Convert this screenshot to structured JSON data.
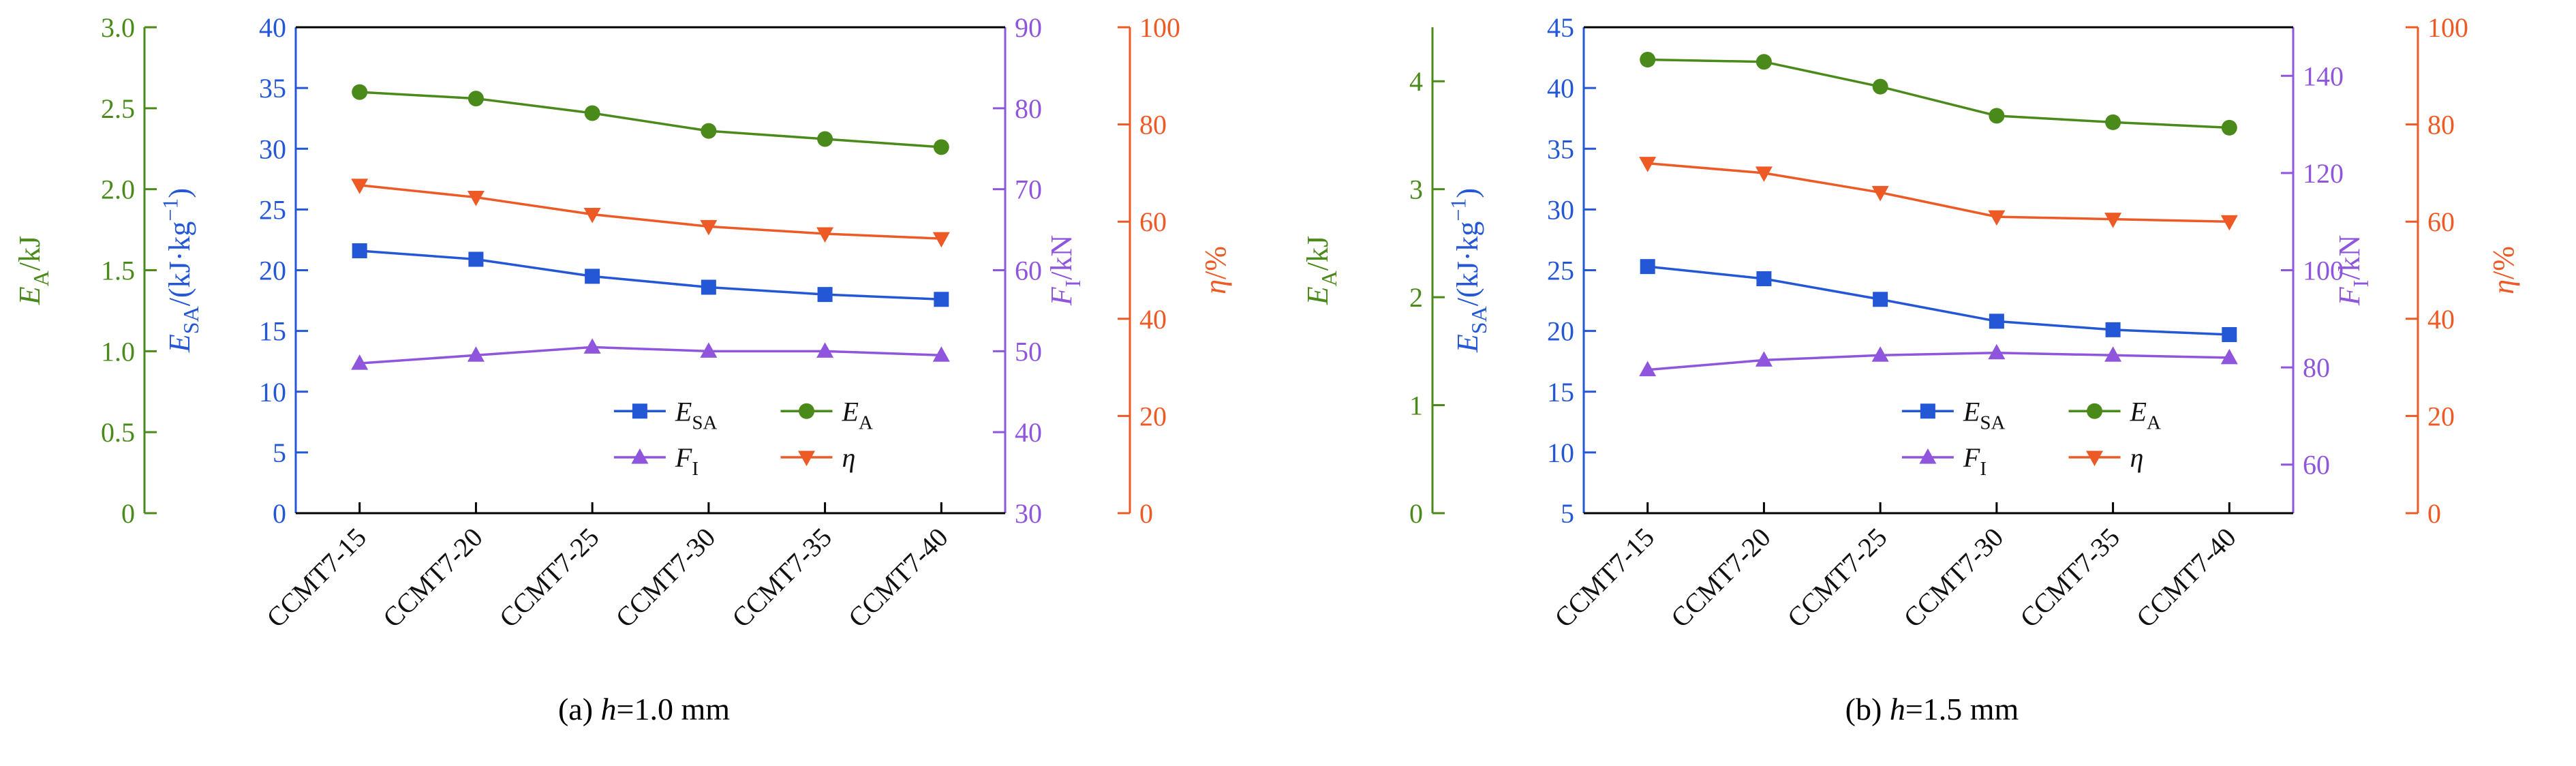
{
  "chart_data": [
    {
      "type": "line",
      "caption": {
        "prefix": "(a) ",
        "variable": "h",
        "suffix": "=1.0 mm"
      },
      "categories": [
        "CCMT7-15",
        "CCMT7-20",
        "CCMT7-25",
        "CCMT7-30",
        "CCMT7-35",
        "CCMT7-40"
      ],
      "axes": [
        {
          "key": "ea",
          "name": "EA/kJ",
          "side": "left-outer",
          "color": "#4a8a1a",
          "range": [
            0,
            3
          ],
          "tick_values": [
            0,
            0.5,
            1,
            1.5,
            2,
            2.5,
            3
          ],
          "tick_labels": [
            "0",
            "0.5",
            "1.0",
            "1.5",
            "2.0",
            "2.5",
            "3.0"
          ],
          "label_parts": [
            {
              "t": "E",
              "i": 1
            },
            {
              "t": "A",
              "sub": 1
            },
            {
              "t": "/kJ"
            }
          ]
        },
        {
          "key": "esa",
          "name": "ESA/(kJ·kg−1)",
          "side": "left-inner",
          "color": "#2457d6",
          "range": [
            0,
            40
          ],
          "tick_values": [
            0,
            5,
            10,
            15,
            20,
            25,
            30,
            35,
            40
          ],
          "tick_labels": [
            "0",
            "5",
            "10",
            "15",
            "20",
            "25",
            "30",
            "35",
            "40"
          ],
          "label_parts": [
            {
              "t": "E",
              "i": 1
            },
            {
              "t": "SA",
              "sub": 1
            },
            {
              "t": "/(kJ·kg"
            },
            {
              "t": "−1",
              "sup": 1
            },
            {
              "t": ")"
            }
          ]
        },
        {
          "key": "fi",
          "name": "FI/kN",
          "side": "right-inner",
          "color": "#8f55dd",
          "range": [
            30,
            90
          ],
          "tick_values": [
            30,
            40,
            50,
            60,
            70,
            80,
            90
          ],
          "tick_labels": [
            "30",
            "40",
            "50",
            "60",
            "70",
            "80",
            "90"
          ],
          "label_parts": [
            {
              "t": "F",
              "i": 1
            },
            {
              "t": "I",
              "sub": 1
            },
            {
              "t": "/kN"
            }
          ]
        },
        {
          "key": "eta",
          "name": "η/%",
          "side": "right-outer",
          "color": "#ee5a26",
          "range": [
            0,
            100
          ],
          "tick_values": [
            0,
            20,
            40,
            60,
            80,
            100
          ],
          "tick_labels": [
            "0",
            "20",
            "40",
            "60",
            "80",
            "100"
          ],
          "label_parts": [
            {
              "t": "η",
              "i": 1
            },
            {
              "t": "/%"
            }
          ]
        }
      ],
      "series": [
        {
          "key": "esa",
          "name": "ESA",
          "axis": "esa",
          "color": "#2457d6",
          "marker": "square",
          "values": [
            21.6,
            20.9,
            19.5,
            18.6,
            18.0,
            17.6
          ],
          "legend_parts": [
            {
              "t": "E",
              "i": 1
            },
            {
              "t": "SA",
              "sub": 1
            }
          ]
        },
        {
          "key": "ea",
          "name": "EA",
          "axis": "ea",
          "color": "#4a8a1a",
          "marker": "circle",
          "values": [
            2.6,
            2.56,
            2.47,
            2.36,
            2.31,
            2.26
          ],
          "legend_parts": [
            {
              "t": "E",
              "i": 1
            },
            {
              "t": "A",
              "sub": 1
            }
          ]
        },
        {
          "key": "fi",
          "name": "FI",
          "axis": "fi",
          "color": "#8f55dd",
          "marker": "triangle-up",
          "values": [
            48.5,
            49.5,
            50.5,
            50.0,
            50.0,
            49.5
          ],
          "legend_parts": [
            {
              "t": "F",
              "i": 1
            },
            {
              "t": "I",
              "sub": 1
            }
          ]
        },
        {
          "key": "eta",
          "name": "η",
          "axis": "eta",
          "color": "#ee5a26",
          "marker": "triangle-down",
          "values": [
            67.5,
            65.0,
            61.5,
            59.0,
            57.5,
            56.5
          ],
          "legend_parts": [
            {
              "t": "η",
              "i": 1
            }
          ]
        }
      ],
      "legend": {
        "rows": [
          [
            "esa",
            "ea"
          ],
          [
            "fi",
            "eta"
          ]
        ]
      }
    },
    {
      "type": "line",
      "caption": {
        "prefix": "(b) ",
        "variable": "h",
        "suffix": "=1.5 mm"
      },
      "categories": [
        "CCMT7-15",
        "CCMT7-20",
        "CCMT7-25",
        "CCMT7-30",
        "CCMT7-35",
        "CCMT7-40"
      ],
      "axes": [
        {
          "key": "ea",
          "name": "EA/kJ",
          "side": "left-outer",
          "color": "#4a8a1a",
          "range": [
            0,
            4.5
          ],
          "tick_values": [
            0,
            1,
            2,
            3,
            4
          ],
          "tick_labels": [
            "0",
            "1",
            "2",
            "3",
            "4"
          ],
          "label_parts": [
            {
              "t": "E",
              "i": 1
            },
            {
              "t": "A",
              "sub": 1
            },
            {
              "t": "/kJ"
            }
          ]
        },
        {
          "key": "esa",
          "name": "ESA/(kJ·kg−1)",
          "side": "left-inner",
          "color": "#2457d6",
          "range": [
            5,
            45
          ],
          "tick_values": [
            5,
            10,
            15,
            20,
            25,
            30,
            35,
            40,
            45
          ],
          "tick_labels": [
            "5",
            "10",
            "15",
            "20",
            "25",
            "30",
            "35",
            "40",
            "45"
          ],
          "label_parts": [
            {
              "t": "E",
              "i": 1
            },
            {
              "t": "SA",
              "sub": 1
            },
            {
              "t": "/(kJ·kg"
            },
            {
              "t": "−1",
              "sup": 1
            },
            {
              "t": ")"
            }
          ]
        },
        {
          "key": "fi",
          "name": "FI/kN",
          "side": "right-inner",
          "color": "#8f55dd",
          "range": [
            50,
            150
          ],
          "tick_values": [
            60,
            80,
            100,
            120,
            140
          ],
          "tick_labels": [
            "60",
            "80",
            "100",
            "120",
            "140"
          ],
          "label_parts": [
            {
              "t": "F",
              "i": 1
            },
            {
              "t": "I",
              "sub": 1
            },
            {
              "t": "/kN"
            }
          ]
        },
        {
          "key": "eta",
          "name": "η/%",
          "side": "right-outer",
          "color": "#ee5a26",
          "range": [
            0,
            100
          ],
          "tick_values": [
            0,
            20,
            40,
            60,
            80,
            100
          ],
          "tick_labels": [
            "0",
            "20",
            "40",
            "60",
            "80",
            "100"
          ],
          "label_parts": [
            {
              "t": "η",
              "i": 1
            },
            {
              "t": "/%"
            }
          ]
        }
      ],
      "series": [
        {
          "key": "esa",
          "name": "ESA",
          "axis": "esa",
          "color": "#2457d6",
          "marker": "square",
          "values": [
            25.3,
            24.3,
            22.6,
            20.8,
            20.1,
            19.7
          ],
          "legend_parts": [
            {
              "t": "E",
              "i": 1
            },
            {
              "t": "SA",
              "sub": 1
            }
          ]
        },
        {
          "key": "ea",
          "name": "EA",
          "axis": "ea",
          "color": "#4a8a1a",
          "marker": "circle",
          "values": [
            4.2,
            4.18,
            3.95,
            3.68,
            3.62,
            3.57
          ],
          "legend_parts": [
            {
              "t": "E",
              "i": 1
            },
            {
              "t": "A",
              "sub": 1
            }
          ]
        },
        {
          "key": "fi",
          "name": "FI",
          "axis": "fi",
          "color": "#8f55dd",
          "marker": "triangle-up",
          "values": [
            79.5,
            81.5,
            82.5,
            83.0,
            82.5,
            82.0
          ],
          "legend_parts": [
            {
              "t": "F",
              "i": 1
            },
            {
              "t": "I",
              "sub": 1
            }
          ]
        },
        {
          "key": "eta",
          "name": "η",
          "axis": "eta",
          "color": "#ee5a26",
          "marker": "triangle-down",
          "values": [
            72.0,
            70.0,
            66.0,
            61.0,
            60.5,
            60.0
          ],
          "legend_parts": [
            {
              "t": "η",
              "i": 1
            }
          ]
        }
      ],
      "legend": {
        "rows": [
          [
            "esa",
            "ea"
          ],
          [
            "fi",
            "eta"
          ]
        ]
      }
    }
  ]
}
